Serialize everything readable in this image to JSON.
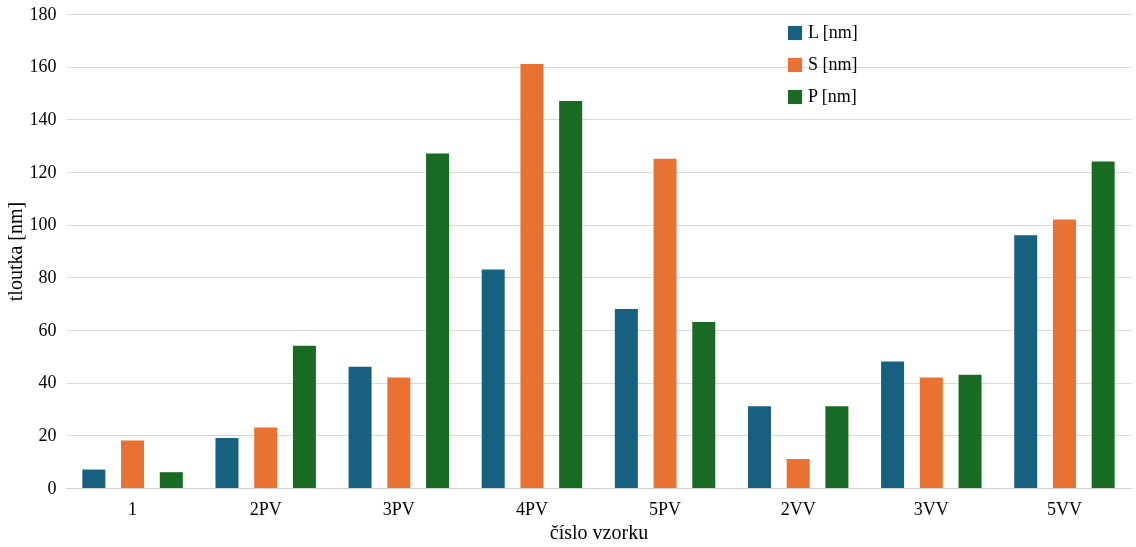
{
  "chart_data": {
    "type": "bar",
    "xlabel": "číslo vzorku",
    "ylabel": "tloutka [nm]",
    "categories": [
      "1",
      "2PV",
      "3PV",
      "4PV",
      "5PV",
      "2VV",
      "3VV",
      "5VV"
    ],
    "series": [
      {
        "name": "L [nm]",
        "color": "#17607f",
        "values": [
          7,
          19,
          46,
          83,
          68,
          31,
          48,
          96
        ]
      },
      {
        "name": "S [nm]",
        "color": "#e97132",
        "values": [
          18,
          23,
          42,
          161,
          125,
          11,
          42,
          102
        ]
      },
      {
        "name": "P [nm]",
        "color": "#196b24",
        "values": [
          6,
          54,
          127,
          147,
          63,
          31,
          43,
          124
        ]
      }
    ],
    "ylim": [
      0,
      180
    ],
    "yticks": [
      0,
      20,
      40,
      60,
      80,
      100,
      120,
      140,
      160,
      180
    ],
    "grid": "y",
    "legend": "top right"
  }
}
